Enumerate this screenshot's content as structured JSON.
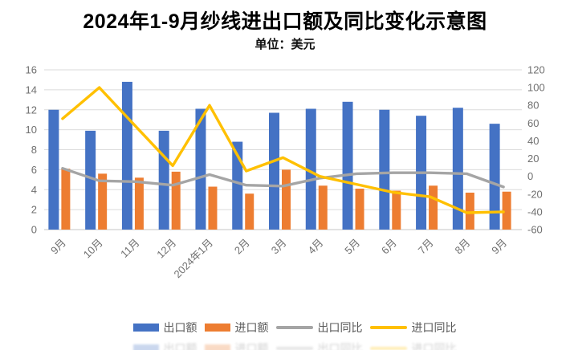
{
  "title": "2024年1-9月纱线进出口额及同比变化示意图",
  "subtitle": "单位：美元",
  "colors": {
    "export_bar": "#4472C4",
    "import_bar": "#ED7D31",
    "export_yoy_line": "#A5A5A5",
    "import_yoy_line": "#FFC000",
    "gridline": "#DBDBDB",
    "axis_line": "#C6C6C6",
    "tick_text": "#707070",
    "legend_text": "#595959",
    "title_text": "#000000"
  },
  "chart_data": {
    "type": "bar",
    "combo": "grouped bars (left axis) + lines (right axis)",
    "title": "2024年1-9月纱线进出口额及同比变化示意图",
    "subtitle": "单位：美元",
    "categories": [
      "9月",
      "10月",
      "11月",
      "12月",
      "2024年1月",
      "2月",
      "3月",
      "4月",
      "5月",
      "6月",
      "7月",
      "8月",
      "9月"
    ],
    "series": [
      {
        "key": "export",
        "name": "出口额",
        "type": "bar",
        "axis": "left",
        "color": "#4472C4",
        "values": [
          12.0,
          9.9,
          14.8,
          9.9,
          12.1,
          8.8,
          11.7,
          12.1,
          12.8,
          12.0,
          11.4,
          12.2,
          10.6
        ]
      },
      {
        "key": "import",
        "name": "进口额",
        "type": "bar",
        "axis": "left",
        "color": "#ED7D31",
        "values": [
          6.1,
          5.6,
          5.2,
          5.8,
          4.3,
          3.6,
          6.0,
          4.4,
          4.1,
          3.9,
          4.4,
          3.7,
          3.8
        ]
      },
      {
        "key": "export-yoy",
        "name": "出口同比",
        "type": "line",
        "axis": "right",
        "color": "#A5A5A5",
        "values": [
          9,
          -5,
          -6,
          -10,
          2,
          -10,
          -11,
          -2,
          3,
          4,
          4,
          3,
          -12
        ]
      },
      {
        "key": "import-yoy",
        "name": "进口同比",
        "type": "line",
        "axis": "right",
        "color": "#FFC000",
        "values": [
          65,
          100,
          56,
          12,
          80,
          6,
          21,
          0,
          -9,
          -18,
          -23,
          -41,
          -40
        ]
      }
    ],
    "left_axis": {
      "min": 0,
      "max": 16,
      "step": 2,
      "ticks": [
        "0",
        "2",
        "4",
        "6",
        "8",
        "10",
        "12",
        "14",
        "16"
      ]
    },
    "right_axis": {
      "min": -60,
      "max": 120,
      "step": 20,
      "ticks": [
        "-60",
        "-40",
        "-20",
        "0",
        "20",
        "40",
        "60",
        "80",
        "100",
        "120"
      ]
    },
    "grid": true,
    "legend_position": "bottom",
    "x_labels_rotated_45deg": true
  }
}
